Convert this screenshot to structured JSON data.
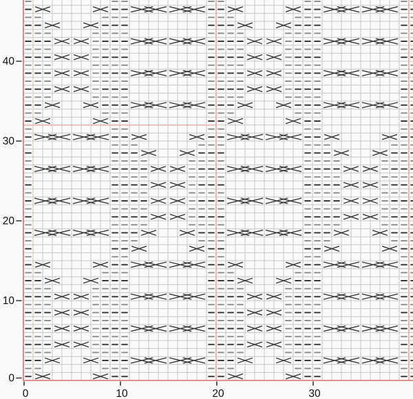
{
  "chart_data": {
    "type": "knitting-chart",
    "title": "",
    "xlabel": "",
    "ylabel": "",
    "x_ticks": [
      0,
      10,
      20,
      30
    ],
    "x_tick_labels": [
      "0",
      "10",
      "20",
      "30"
    ],
    "y_ticks": [
      0,
      10,
      20,
      30,
      40
    ],
    "y_tick_labels": [
      "0",
      "10",
      "20",
      "30",
      "40"
    ],
    "x_range": [
      0,
      40.4
    ],
    "y_range": [
      0,
      48
    ],
    "grid_on": true,
    "stitches_visible": 41,
    "rows_visible": 48,
    "repeat_stitches": 20,
    "repeat_rows": 32,
    "tiling_note": "pattern tiles every 20 stitches and 32 rows; rows 17-32 equal rows 1-16 shifted 10 stitches",
    "legend": {
      "-": "purl-dash",
      "=": "purl-dash-gray",
      "x": "two-stitch-twist-cross (spans 2 cells)",
      "c": "four-stitch-cable-braid (spans 4 cells)",
      "+": "continuation of multi-cell symbol",
      ".": "knit (empty cell)"
    },
    "repeat_rows_bottom_to_top": [
      "-x+....x+--........-",
      "--......---........-",
      "--x+..x+---c+++c+++-",
      "---....----........-",
      "---x+x+=---........-",
      "---....----........-",
      "---x+x+=---c+++c+++-",
      "---....----........-",
      "---x+x+=---........-",
      "---....----........-",
      "---x+x+=---c+++c+++-",
      "---....----........-",
      "--x+..x+---........-",
      "--......---........-",
      "-x+....x+--c+++c+++-",
      "-........--........-",
      "-........--x+....x+-",
      "-........---......--",
      "-c+++c+++---x+..x+--",
      "-........----....---",
      "-........----x+x+=--",
      "-........----....---",
      "-c+++c+++----x+x+=--",
      "-........----....---",
      "-........----x+x+=--",
      "-........----....---",
      "-c+++c+++----x+x+=--",
      "-........----....---",
      "-........---x+..x+--",
      "-........---......--",
      "-c+++c+++--x+....x+-",
      "-........--........-"
    ],
    "repeat_box": {
      "stitch_start": 0,
      "stitch_end": 20,
      "row_start": 0,
      "row_end": 32
    },
    "vertical_guide_stitches": [
      20,
      40
    ],
    "colors": {
      "background": "#fafafa",
      "grid": "#c8c8c8",
      "symbol": "#3a3a3a",
      "symbol_gray": "#8f8f8f",
      "repeat_box_red": "#dc6e6e",
      "guide_pink": "#efaaaa",
      "tick": "#333333",
      "label": "#111111"
    }
  }
}
